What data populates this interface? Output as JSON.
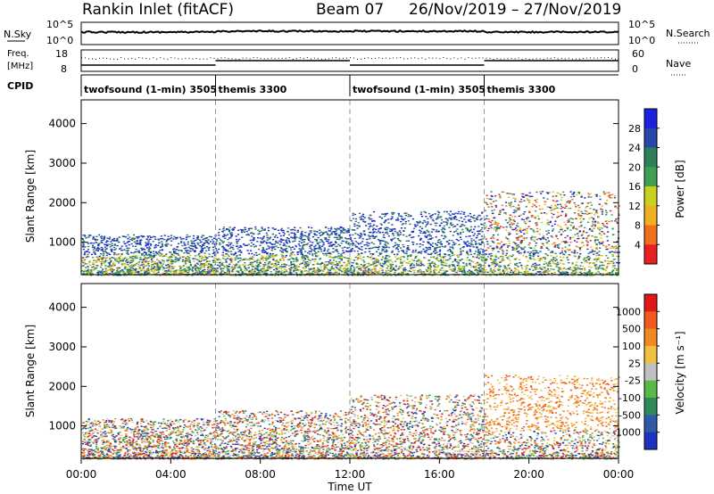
{
  "header": {
    "station": "Rankin Inlet (fitACF)",
    "beam": "Beam 07",
    "date_range": "26/Nov/2019 – 27/Nov/2019"
  },
  "top_panels": {
    "nsky_label": "N.Sky",
    "nsky_ticks": [
      "10^5",
      "10^0"
    ],
    "nsearch_label": "N.Search",
    "nsearch_ticks": [
      "10^5",
      "10^0"
    ],
    "freq_label": "Freq.",
    "freq_unit": "[MHz]",
    "freq_ticks": [
      "18",
      "8"
    ],
    "nave_label": "Nave",
    "nave_ticks": [
      "60",
      "0"
    ],
    "cpid_label": "CPID",
    "cpid_segments": [
      {
        "label": "twofsound (1-min) 3505",
        "start_h": 0,
        "end_h": 6
      },
      {
        "label": "themis 3300",
        "start_h": 6,
        "end_h": 12
      },
      {
        "label": "twofsound (1-min) 3505",
        "start_h": 12,
        "end_h": 18
      },
      {
        "label": "themis 3300",
        "start_h": 18,
        "end_h": 24
      }
    ]
  },
  "power_panel": {
    "ylabel": "Slant Range [km]",
    "yticks": [
      "4000",
      "3000",
      "2000",
      "1000"
    ],
    "colorbar_label": "Power [dB]",
    "colorbar_ticks": [
      "28",
      "24",
      "20",
      "16",
      "12",
      "8",
      "4"
    ],
    "colors": [
      "#1a22e0",
      "#2648a8",
      "#2e7f5a",
      "#3fa055",
      "#c8d020",
      "#f0b020",
      "#f07020",
      "#e82020"
    ]
  },
  "velocity_panel": {
    "ylabel": "Slant Range [km]",
    "yticks": [
      "4000",
      "3000",
      "2000",
      "1000"
    ],
    "colorbar_label": "Velocity [m s⁻¹]",
    "colorbar_ticks": [
      "1000",
      "500",
      "100",
      "25",
      "-25",
      "-100",
      "-500",
      "-1000"
    ],
    "colors": [
      "#2030c0",
      "#2f5aa8",
      "#2f8a5a",
      "#5ab845",
      "#c0c0c0",
      "#f0c040",
      "#f08a20",
      "#f05a20",
      "#e01818"
    ]
  },
  "x_axis": {
    "ticks": [
      "00:00",
      "04:00",
      "08:00",
      "12:00",
      "16:00",
      "20:00",
      "00:00"
    ],
    "label": "Time UT"
  },
  "chart_data": {
    "type": "heatmap",
    "x_range_hours": [
      0,
      24
    ],
    "y_range_km": [
      180,
      4600
    ],
    "y_ticks_km": [
      1000,
      2000,
      3000,
      4000
    ],
    "x_ticks_hours": [
      0,
      4,
      8,
      12,
      16,
      20,
      24
    ],
    "mode_change_hours": [
      6,
      12,
      18
    ],
    "scatter_regions": [
      {
        "start_h": 0,
        "end_h": 6,
        "range_km": [
          180,
          1200
        ]
      },
      {
        "start_h": 6,
        "end_h": 12,
        "range_km": [
          180,
          1400
        ]
      },
      {
        "start_h": 12,
        "end_h": 18,
        "range_km": [
          180,
          1800
        ]
      },
      {
        "start_h": 18,
        "end_h": 24,
        "range_km": [
          180,
          2300
        ]
      }
    ]
  }
}
